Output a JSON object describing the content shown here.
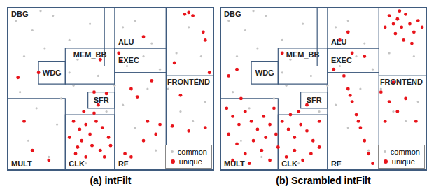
{
  "chart_data": [
    {
      "type": "scatter",
      "title": "(a) intFilt",
      "xlim": [
        0,
        100
      ],
      "ylim": [
        0,
        100
      ],
      "tick_labels": false,
      "legend": "lower right",
      "regions": [
        {
          "label": "DBG",
          "x": [
            0,
            47
          ],
          "y": [
            64,
            100
          ]
        },
        {
          "label": "ALU",
          "x": [
            52,
            77
          ],
          "y": [
            75,
            100
          ]
        },
        {
          "x": [
            77,
            100
          ],
          "y": [
            58,
            100
          ]
        },
        {
          "label": "WDG",
          "x": [
            15,
            28
          ],
          "y": [
            53,
            67
          ]
        },
        {
          "label": "MEM_BB",
          "x": [
            28,
            52
          ],
          "y": [
            53,
            75
          ]
        },
        {
          "label": "EXEC",
          "x": [
            52,
            77
          ],
          "y": [
            60,
            75
          ]
        },
        {
          "label": "FRONTEND",
          "x": [
            77,
            100
          ],
          "y": [
            0,
            58
          ]
        },
        {
          "label": "SFR",
          "x": [
            39,
            52
          ],
          "y": [
            38,
            48
          ]
        },
        {
          "label": "CLK",
          "x": [
            28,
            52
          ],
          "y": [
            0,
            34
          ]
        },
        {
          "label": "MULT",
          "x": [
            0,
            28
          ],
          "y": [
            0,
            44
          ]
        },
        {
          "label": "RF",
          "x": [
            52,
            77
          ],
          "y": [
            0,
            60
          ]
        }
      ],
      "series": [
        {
          "name": "common",
          "color": "#c4c4c4",
          "marker": "circle",
          "x": [
            4,
            12,
            22,
            30,
            40,
            8,
            18,
            34,
            44,
            6,
            14,
            24,
            10,
            20,
            26,
            32,
            38,
            48,
            56,
            62,
            70,
            58,
            66,
            74,
            56,
            62,
            72,
            58,
            68,
            82,
            88,
            94,
            84,
            90,
            96,
            78,
            92,
            52,
            30,
            16
          ],
          "y": [
            92,
            86,
            95,
            80,
            90,
            70,
            75,
            68,
            58,
            48,
            38,
            28,
            18,
            8,
            44,
            52,
            4,
            36,
            88,
            92,
            78,
            64,
            70,
            62,
            40,
            26,
            12,
            4,
            50,
            72,
            88,
            70,
            36,
            30,
            42,
            50,
            56,
            52,
            60,
            98
          ]
        },
        {
          "name": "unique",
          "color": "#e8141b",
          "marker": "circle",
          "x": [
            86,
            88,
            90,
            96,
            98,
            81,
            95,
            66,
            54,
            55,
            60,
            63,
            70,
            68,
            74,
            80,
            57,
            60,
            72,
            66,
            5,
            15,
            45,
            42,
            48,
            32,
            35,
            38,
            40,
            43,
            46,
            49,
            36,
            41,
            45,
            33,
            38,
            47,
            50,
            30,
            42,
            37,
            44,
            34,
            12,
            20,
            8,
            84,
            88,
            96
          ],
          "y": [
            96,
            97,
            95,
            80,
            60,
            66,
            85,
            82,
            72,
            67,
            50,
            45,
            55,
            30,
            28,
            27,
            10,
            8,
            22,
            18,
            57,
            60,
            68,
            48,
            47,
            30,
            25,
            28,
            22,
            30,
            26,
            20,
            18,
            15,
            12,
            10,
            8,
            8,
            15,
            20,
            35,
            36,
            40,
            14,
            12,
            6,
            30,
            46,
            24,
            26
          ]
        }
      ]
    },
    {
      "type": "scatter",
      "title": "(b) Scrambled intFilt",
      "xlim": [
        0,
        100
      ],
      "ylim": [
        0,
        100
      ],
      "tick_labels": false,
      "legend": "lower right",
      "regions": [
        {
          "label": "DBG",
          "x": [
            0,
            47
          ],
          "y": [
            64,
            100
          ]
        },
        {
          "label": "ALU",
          "x": [
            52,
            77
          ],
          "y": [
            75,
            100
          ]
        },
        {
          "x": [
            77,
            100
          ],
          "y": [
            58,
            100
          ]
        },
        {
          "label": "WDG",
          "x": [
            15,
            28
          ],
          "y": [
            53,
            67
          ]
        },
        {
          "label": "MEM_BB",
          "x": [
            28,
            52
          ],
          "y": [
            53,
            75
          ]
        },
        {
          "label": "EXEC",
          "x": [
            52,
            77
          ],
          "y": [
            60,
            75
          ]
        },
        {
          "label": "FRONTEND",
          "x": [
            77,
            100
          ],
          "y": [
            0,
            58
          ]
        },
        {
          "label": "SFR",
          "x": [
            39,
            52
          ],
          "y": [
            38,
            48
          ]
        },
        {
          "label": "CLK",
          "x": [
            28,
            52
          ],
          "y": [
            0,
            34
          ]
        },
        {
          "label": "MULT",
          "x": [
            0,
            28
          ],
          "y": [
            0,
            44
          ]
        },
        {
          "label": "RF",
          "x": [
            52,
            77
          ],
          "y": [
            0,
            60
          ]
        }
      ],
      "series": [
        {
          "name": "common",
          "color": "#c4c4c4",
          "marker": "circle",
          "x": [
            4,
            12,
            22,
            30,
            40,
            8,
            18,
            34,
            44,
            6,
            14,
            24,
            10,
            20,
            26,
            32,
            38,
            48,
            56,
            62,
            70,
            58,
            66,
            74,
            56,
            62,
            72,
            58,
            68,
            82,
            88,
            94,
            84,
            90,
            96,
            78,
            92,
            52,
            30,
            16
          ],
          "y": [
            92,
            86,
            95,
            80,
            90,
            70,
            75,
            68,
            58,
            48,
            38,
            28,
            18,
            8,
            44,
            52,
            4,
            36,
            88,
            92,
            78,
            64,
            70,
            62,
            40,
            26,
            12,
            4,
            50,
            72,
            88,
            70,
            36,
            30,
            42,
            50,
            56,
            52,
            60,
            98
          ]
        },
        {
          "name": "unique",
          "color": "#e8141b",
          "marker": "circle",
          "x": [
            82,
            84,
            86,
            88,
            90,
            92,
            94,
            96,
            85,
            89,
            93,
            98,
            80,
            87,
            62,
            58,
            64,
            70,
            55,
            60,
            62,
            64,
            66,
            68,
            70,
            72,
            74,
            63,
            67,
            78,
            82,
            86,
            80,
            90,
            95,
            84,
            3,
            6,
            9,
            12,
            15,
            18,
            21,
            24,
            27,
            30,
            33,
            36,
            39,
            42,
            45,
            48,
            4,
            8,
            12,
            16,
            20,
            24,
            28,
            32,
            36,
            40,
            44,
            48,
            6,
            14,
            22,
            34,
            26,
            38,
            42,
            10,
            4,
            8,
            30
          ],
          "y": [
            95,
            90,
            93,
            88,
            96,
            90,
            85,
            92,
            84,
            80,
            78,
            88,
            88,
            98,
            85,
            80,
            72,
            70,
            62,
            58,
            50,
            42,
            34,
            26,
            18,
            10,
            4,
            46,
            30,
            48,
            42,
            36,
            30,
            44,
            30,
            54,
            38,
            33,
            28,
            36,
            30,
            25,
            33,
            28,
            22,
            30,
            25,
            20,
            28,
            24,
            18,
            30,
            22,
            16,
            10,
            18,
            12,
            6,
            14,
            8,
            12,
            6,
            10,
            14,
            6,
            4,
            20,
            34,
            38,
            36,
            40,
            44,
            58,
            62,
            72
          ]
        }
      ]
    }
  ]
}
